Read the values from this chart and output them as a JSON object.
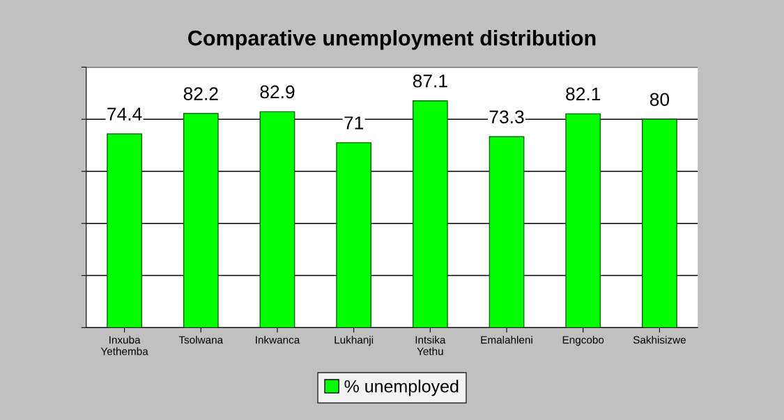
{
  "chart_data": {
    "type": "bar",
    "title": "Comparative unemployment distribution",
    "categories": [
      "Inxuba Yethemba",
      "Tsolwana",
      "Inkwanca",
      "Lukhanji",
      "Intsika Yethu",
      "Emalahleni",
      "Engcobo",
      "Sakhisizwe"
    ],
    "series": [
      {
        "name": "% unemployed",
        "color": "#00ff00",
        "values": [
          74.4,
          82.2,
          82.9,
          71,
          87.1,
          73.3,
          82.1,
          80
        ]
      }
    ],
    "data_labels": true,
    "ylim": [
      0,
      100
    ],
    "yticks": [
      {
        "value": 0,
        "label": null
      },
      {
        "value": 20,
        "label": null
      },
      {
        "value": 40,
        "label": null
      },
      {
        "value": 60,
        "label": null
      },
      {
        "value": 80,
        "label": null
      },
      {
        "value": 100,
        "label": null
      }
    ],
    "grid": "y",
    "legend": "bottom",
    "tick_labels": "x"
  }
}
